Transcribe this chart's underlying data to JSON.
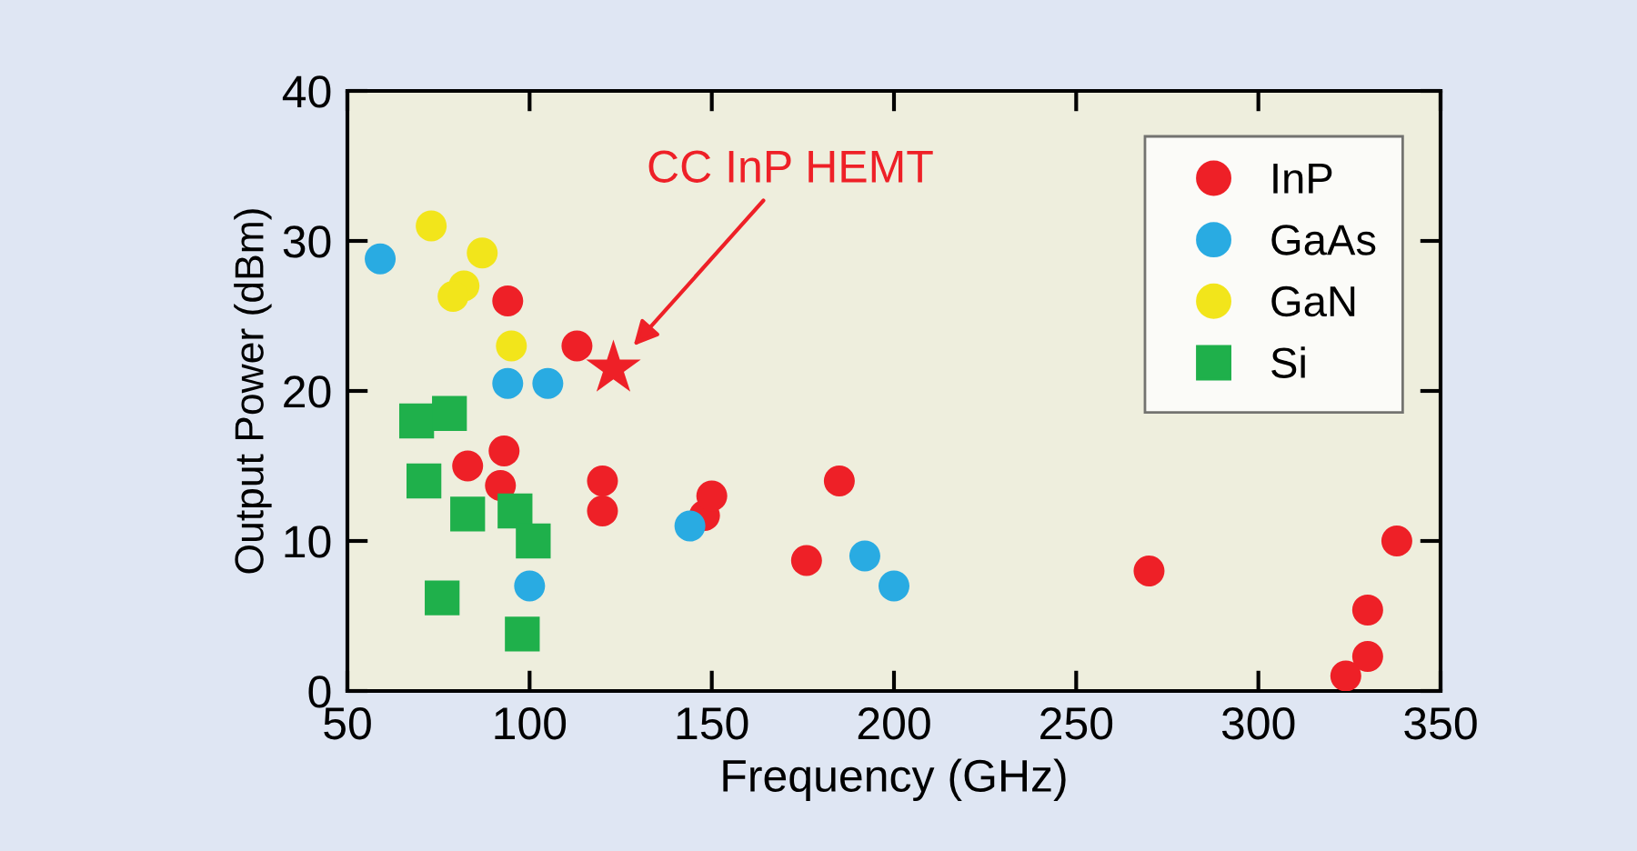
{
  "chart_data": {
    "type": "scatter",
    "xlabel": "Frequency (GHz)",
    "ylabel": "Output Power (dBm)",
    "xlim": [
      50,
      350
    ],
    "xticks": [
      50,
      100,
      150,
      200,
      250,
      300,
      350
    ],
    "ylim": [
      0,
      40
    ],
    "yticks": [
      0,
      10,
      20,
      30,
      40
    ],
    "grid": false,
    "legend": "top right",
    "series": [
      {
        "name": "InP",
        "color": "#ee2027",
        "marker": "circle",
        "x": [
          94,
          113,
          83,
          93,
          92,
          120,
          120,
          148,
          150,
          176,
          185,
          270,
          338,
          330,
          330,
          324
        ],
        "values": [
          26,
          23,
          15,
          16,
          13.7,
          14,
          12,
          11.7,
          13,
          8.7,
          14,
          8,
          10,
          5.4,
          2.3,
          1
        ]
      },
      {
        "name": "GaAs",
        "color": "#29abe2",
        "marker": "circle",
        "x": [
          59,
          94,
          105,
          144,
          192,
          200,
          100
        ],
        "values": [
          28.8,
          20.5,
          20.5,
          11,
          9,
          7,
          7
        ]
      },
      {
        "name": "GaN",
        "color": "#f2e51b",
        "marker": "circle",
        "x": [
          73,
          87,
          82,
          79,
          95
        ],
        "values": [
          31,
          29.2,
          27,
          26.3,
          23
        ]
      },
      {
        "name": "Si",
        "color": "#1fb04b",
        "marker": "square",
        "x": [
          69,
          78,
          71,
          83,
          96,
          101,
          76,
          98
        ],
        "values": [
          18,
          18.5,
          14,
          11.8,
          12,
          10,
          6.2,
          3.8
        ]
      },
      {
        "color": "#ee2027",
        "marker": "star",
        "x": [
          123
        ],
        "values": [
          21.5
        ]
      }
    ],
    "annotations": [
      "CC InP HEMT"
    ]
  }
}
